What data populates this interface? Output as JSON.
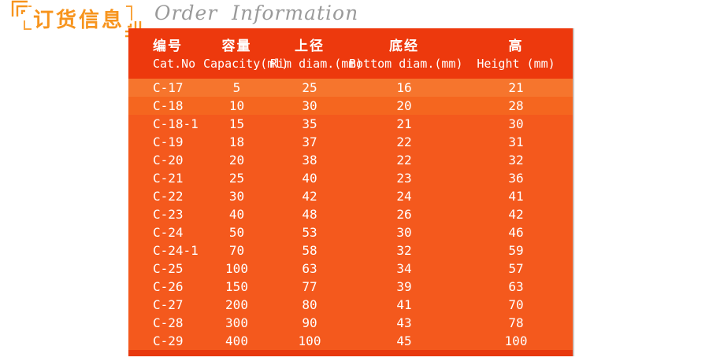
{
  "page": {
    "title_cn": "订货信息",
    "title_en": "Order Information"
  },
  "colors": {
    "accent_orange": "#f7941d",
    "header_red": "#ed390d",
    "body_orange": "#f4591d",
    "bottom_strip_red": "#e8380d",
    "title_gray": "#9a9a9a",
    "text_white": "#ffffff"
  },
  "table": {
    "columns": [
      {
        "cn": "编号",
        "en": "Cat.No"
      },
      {
        "cn": "容量",
        "en": "Capacity(ml)"
      },
      {
        "cn": "上径",
        "en": "Rim diam.(mm)"
      },
      {
        "cn": "底经",
        "en": "Bottom diam.(mm)"
      },
      {
        "cn": "高",
        "en": "Height (mm)"
      }
    ],
    "rows": [
      [
        "C-17",
        "5",
        "25",
        "16",
        "21"
      ],
      [
        "C-18",
        "10",
        "30",
        "20",
        "28"
      ],
      [
        "C-18-1",
        "15",
        "35",
        "21",
        "30"
      ],
      [
        "C-19",
        "18",
        "37",
        "22",
        "31"
      ],
      [
        "C-20",
        "20",
        "38",
        "22",
        "32"
      ],
      [
        "C-21",
        "25",
        "40",
        "23",
        "36"
      ],
      [
        "C-22",
        "30",
        "42",
        "24",
        "41"
      ],
      [
        "C-23",
        "40",
        "48",
        "26",
        "42"
      ],
      [
        "C-24",
        "50",
        "53",
        "30",
        "46"
      ],
      [
        "C-24-1",
        "70",
        "58",
        "32",
        "59"
      ],
      [
        "C-25",
        "100",
        "63",
        "34",
        "57"
      ],
      [
        "C-26",
        "150",
        "77",
        "39",
        "63"
      ],
      [
        "C-27",
        "200",
        "80",
        "41",
        "70"
      ],
      [
        "C-28",
        "300",
        "90",
        "43",
        "78"
      ],
      [
        "C-29",
        "400",
        "100",
        "45",
        "100"
      ]
    ]
  }
}
